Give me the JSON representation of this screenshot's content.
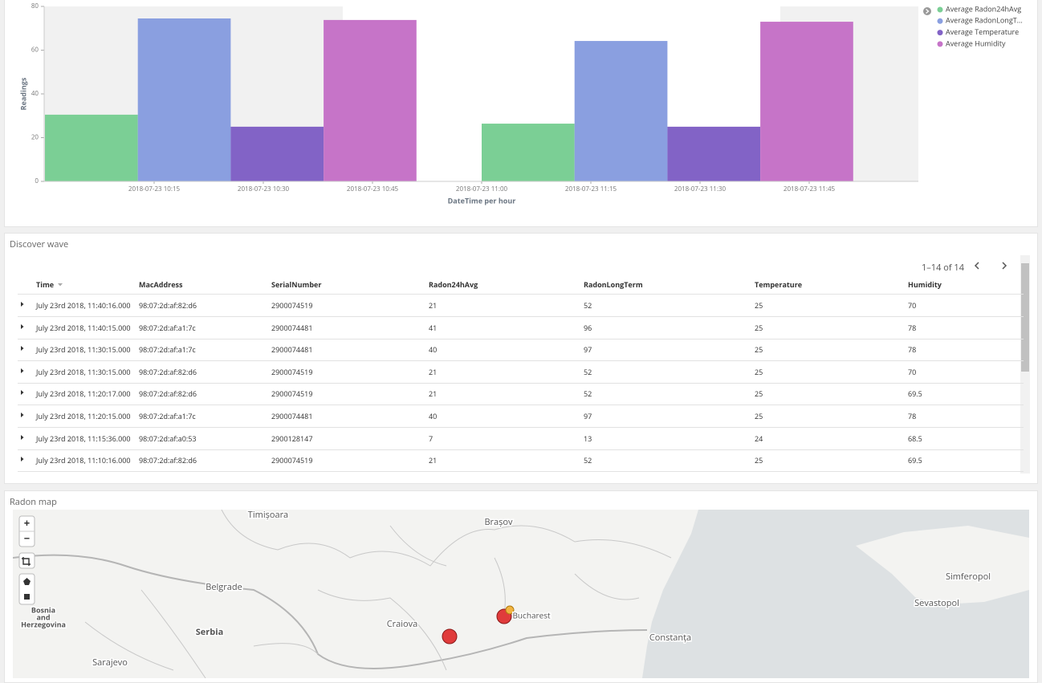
{
  "chart_data": {
    "type": "bar",
    "categories": [
      null,
      null
    ],
    "xticks": [
      "2018-07-23 10:15",
      "2018-07-23 10:30",
      "2018-07-23 10:45",
      "2018-07-23 11:00",
      "2018-07-23 11:15",
      "2018-07-23 11:30",
      "2018-07-23 11:45"
    ],
    "x_label": "DateTime per hour",
    "y_label": "Readings",
    "ylim": [
      0,
      80
    ],
    "yticks": [
      0,
      20,
      40,
      60,
      80
    ],
    "grid": false,
    "legend": "right",
    "series": [
      {
        "name": "Average Radon24hAvg",
        "color": "#7bcf95",
        "values": [
          30.5,
          26.4
        ]
      },
      {
        "name": "Average RadonLongT...",
        "color": "#8a9fe0",
        "values": [
          74.5,
          64.2
        ]
      },
      {
        "name": "Average Temperature",
        "color": "#8263c6",
        "values": [
          25,
          25
        ]
      },
      {
        "name": "Average Humidity",
        "color": "#c674c8",
        "values": [
          73.8,
          73
        ]
      }
    ]
  },
  "table": {
    "title": "Discover wave",
    "pagination": "1–14 of 14",
    "columns": [
      "Time",
      "MacAddress",
      "SerialNumber",
      "Radon24hAvg",
      "RadonLongTerm",
      "Temperature",
      "Humidity"
    ],
    "rows": [
      [
        "July 23rd 2018, 11:40:16.000",
        "98:07:2d:af:82:d6",
        "2900074519",
        21,
        52,
        25,
        70
      ],
      [
        "July 23rd 2018, 11:40:15.000",
        "98:07:2d:af:a1:7c",
        "2900074481",
        41,
        96,
        25,
        78
      ],
      [
        "July 23rd 2018, 11:30:15.000",
        "98:07:2d:af:a1:7c",
        "2900074481",
        40,
        97,
        25,
        78
      ],
      [
        "July 23rd 2018, 11:30:15.000",
        "98:07:2d:af:82:d6",
        "2900074519",
        21,
        52,
        25,
        70
      ],
      [
        "July 23rd 2018, 11:20:17.000",
        "98:07:2d:af:82:d6",
        "2900074519",
        21,
        52,
        25,
        69.5
      ],
      [
        "July 23rd 2018, 11:20:15.000",
        "98:07:2d:af:a1:7c",
        "2900074481",
        40,
        97,
        25,
        78
      ],
      [
        "July 23rd 2018, 11:15:36.000",
        "98:07:2d:af:a0:53",
        "2900128147",
        7,
        13,
        24,
        68.5
      ],
      [
        "July 23rd 2018, 11:10:16.000",
        "98:07:2d:af:82:d6",
        "2900074519",
        21,
        52,
        25,
        69.5
      ]
    ]
  },
  "map": {
    "title": "Radon map",
    "zoom_in": "+",
    "zoom_out": "−",
    "labels": {
      "timisoara": "Timișoara",
      "brasov": "Brașov",
      "belgrade": "Belgrade",
      "bucharest": "Bucharest",
      "craiova": "Craiova",
      "serbia": "Serbia",
      "bosnia": [
        "Bosnia",
        "and",
        "Herzegovina"
      ],
      "sarajevo": "Sarajevo",
      "constanta": "Constanța",
      "simferopol": "Simferopol",
      "sevastopol": "Sevastopol"
    }
  }
}
